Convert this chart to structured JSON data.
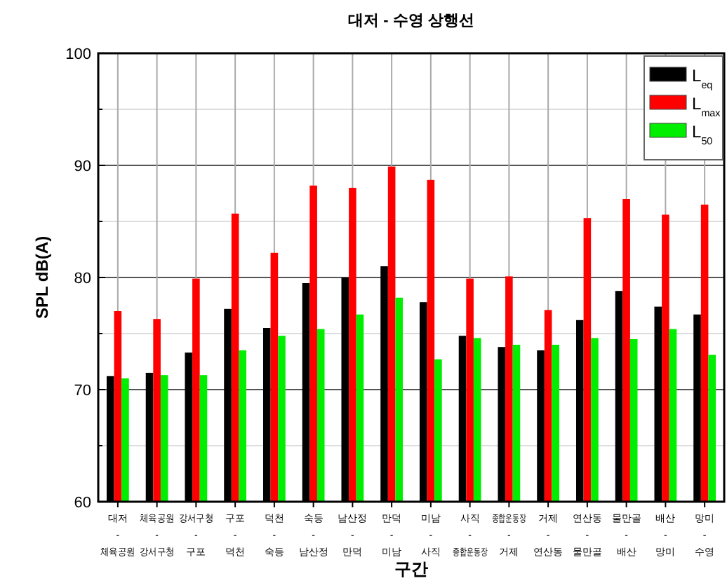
{
  "chart_data": {
    "type": "bar",
    "title": "대저 - 수영 상행선",
    "xlabel": "구간",
    "ylabel": "SPL dB(A)",
    "categories": [
      "대저\n-\n체육공원",
      "체육공원\n-\n강서구청",
      "강서구청\n-\n구포",
      "구포\n-\n덕천",
      "덕천\n-\n숙등",
      "숙등\n-\n남산정",
      "남산정\n-\n만덕",
      "만덕\n-\n미남",
      "미남\n-\n사직",
      "사직\n-\n종합운동장",
      "종합운동장\n-\n거제",
      "거제\n-\n연산동",
      "연산동\n-\n물만골",
      "물만골\n-\n배산",
      "배산\n-\n망미",
      "망미\n-\n수영"
    ],
    "series": [
      {
        "name": "L$_{eq}$",
        "color": "#000000",
        "values": [
          71.2,
          71.5,
          73.3,
          77.2,
          75.5,
          79.5,
          80.0,
          81.0,
          77.8,
          74.8,
          73.8,
          73.5,
          76.2,
          78.8,
          77.4,
          76.7
        ]
      },
      {
        "name": "L$_{max}$",
        "color": "#ff0000",
        "values": [
          77.0,
          76.3,
          79.9,
          85.7,
          82.2,
          88.2,
          88.0,
          89.9,
          88.7,
          79.9,
          80.1,
          77.1,
          85.3,
          87.0,
          85.6,
          86.5
        ]
      },
      {
        "name": "L$_{50}$",
        "color": "#00ee00",
        "values": [
          71.0,
          71.3,
          71.3,
          73.5,
          74.8,
          75.4,
          76.7,
          78.2,
          72.7,
          74.6,
          74.0,
          74.0,
          74.6,
          74.5,
          75.4,
          73.1
        ]
      }
    ],
    "ylim": [
      60,
      100
    ],
    "yticks": [
      60,
      {
        "value": 65,
        "label": null
      },
      70,
      {
        "value": 75,
        "label": null
      },
      80,
      {
        "value": 85,
        "label": null
      },
      90,
      {
        "value": 95,
        "label": null
      },
      100
    ],
    "grid": true,
    "legend": "top right"
  }
}
